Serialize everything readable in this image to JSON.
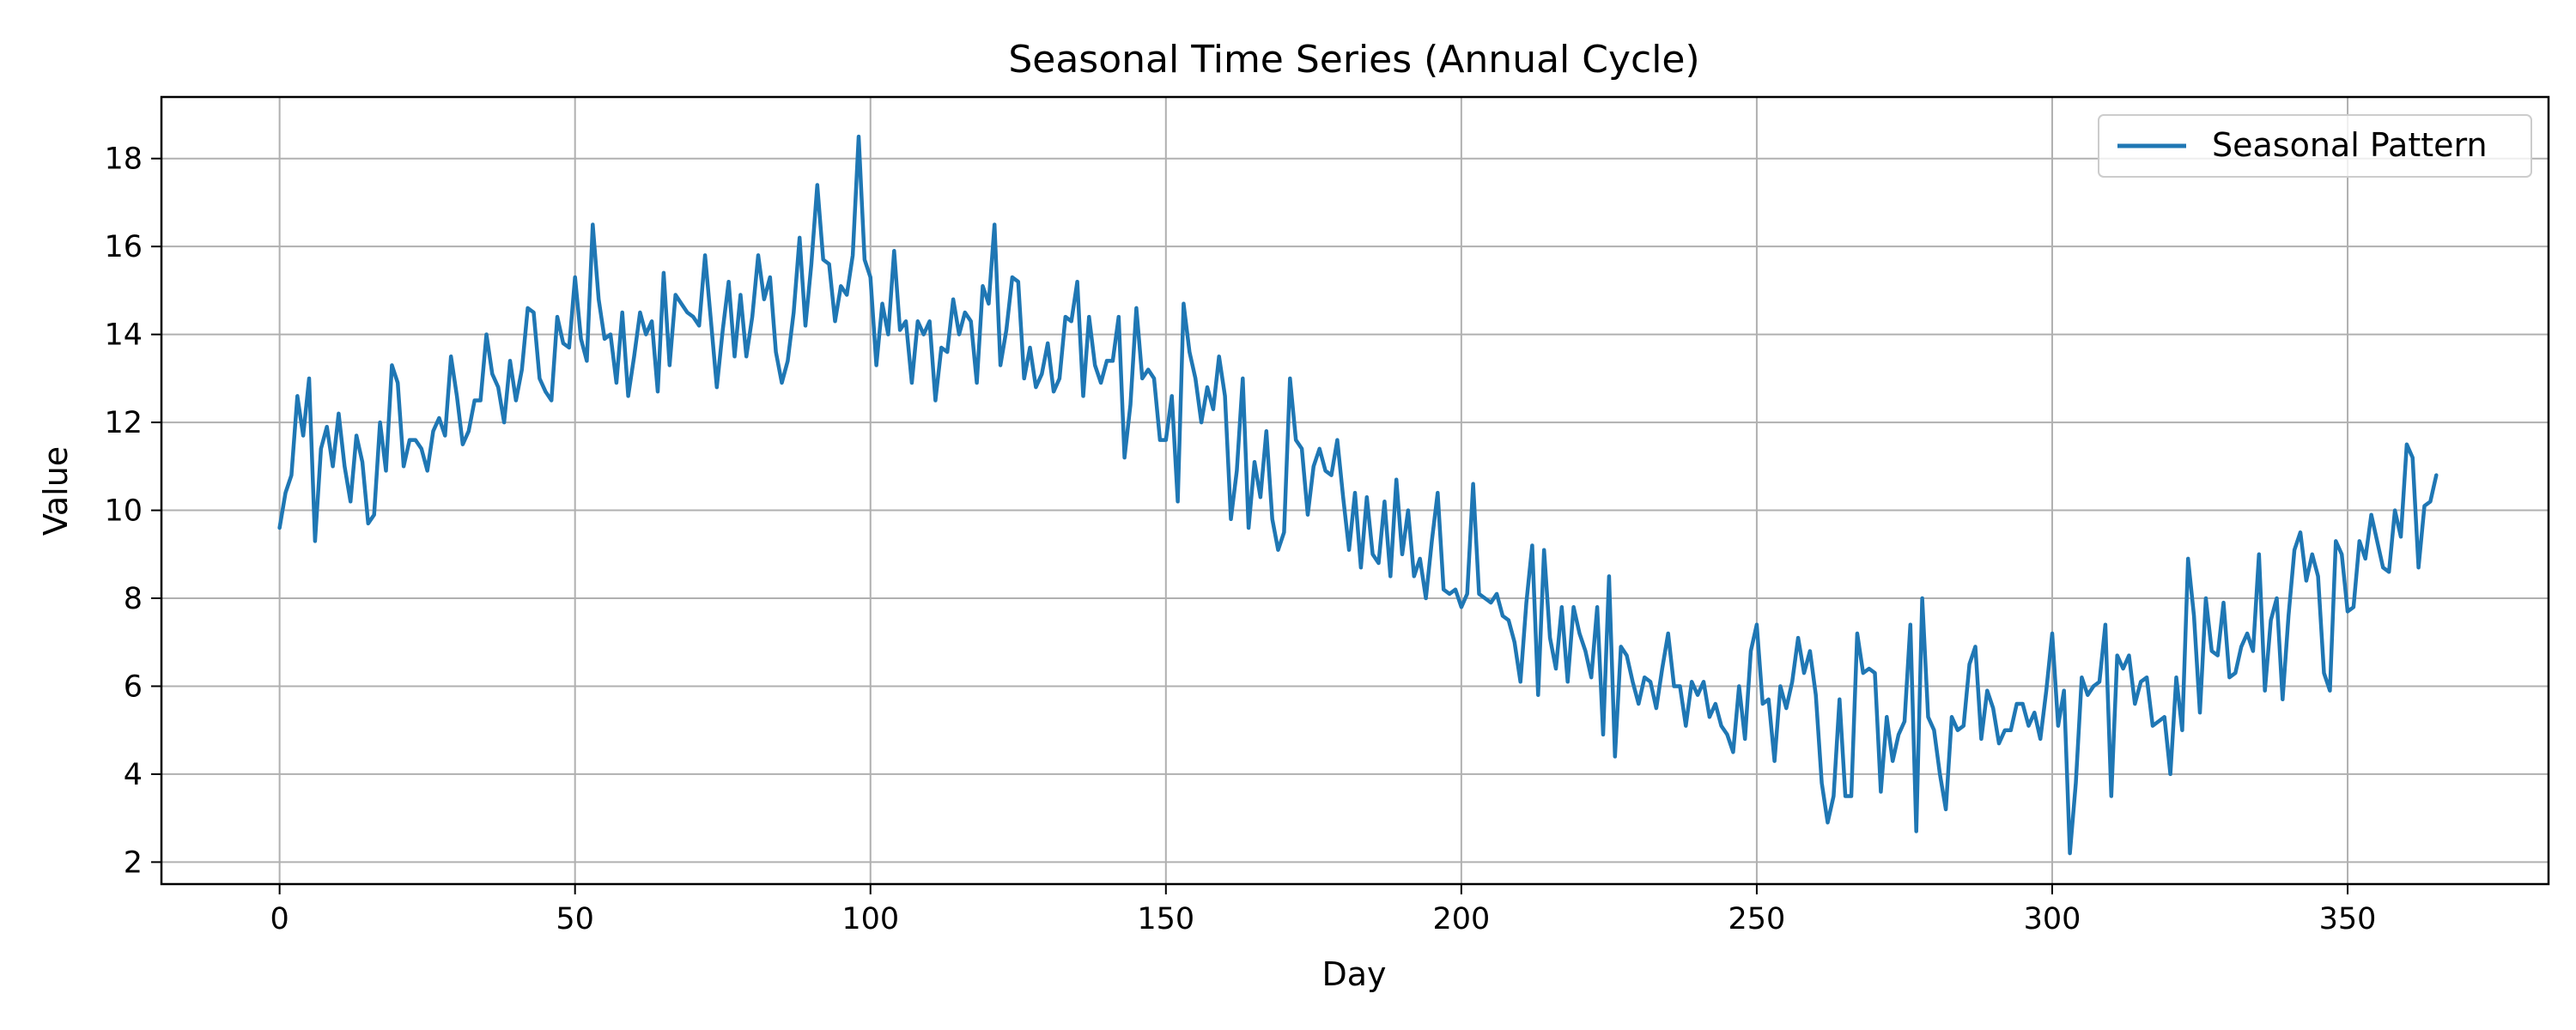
{
  "chart_data": {
    "type": "line",
    "title": "Seasonal Time Series (Annual Cycle)",
    "xlabel": "Day",
    "ylabel": "Value",
    "xlim": [
      -20,
      384
    ],
    "ylim": [
      1.5,
      19.4
    ],
    "xticks": [
      0,
      50,
      100,
      150,
      200,
      250,
      300,
      350
    ],
    "yticks": [
      2,
      4,
      6,
      8,
      10,
      12,
      14,
      16,
      18
    ],
    "grid": true,
    "legend_position": "top-right",
    "series": [
      {
        "name": "Seasonal Pattern",
        "color": "#1f77b4",
        "x_start": 0,
        "x_step": 1,
        "values": [
          9.6,
          10.4,
          10.8,
          12.6,
          11.7,
          13.0,
          9.3,
          11.4,
          11.9,
          11.0,
          12.2,
          11.0,
          10.2,
          11.7,
          11.1,
          9.7,
          9.9,
          12.0,
          10.9,
          13.3,
          12.9,
          11.0,
          11.6,
          11.6,
          11.4,
          10.9,
          11.8,
          12.1,
          11.7,
          13.5,
          12.6,
          11.5,
          11.8,
          12.5,
          12.5,
          14.0,
          13.1,
          12.8,
          12.0,
          13.4,
          12.5,
          13.2,
          14.6,
          14.5,
          13.0,
          12.7,
          12.5,
          14.4,
          13.8,
          13.7,
          15.3,
          13.9,
          13.4,
          16.5,
          14.8,
          13.9,
          14.0,
          12.9,
          14.5,
          12.6,
          13.5,
          14.5,
          14.0,
          14.3,
          12.7,
          15.4,
          13.3,
          14.9,
          14.7,
          14.5,
          14.4,
          14.2,
          15.8,
          14.3,
          12.8,
          14.1,
          15.2,
          13.5,
          14.9,
          13.5,
          14.4,
          15.8,
          14.8,
          15.3,
          13.6,
          12.9,
          13.4,
          14.5,
          16.2,
          14.2,
          15.6,
          17.4,
          15.7,
          15.6,
          14.3,
          15.1,
          14.9,
          15.8,
          18.5,
          15.7,
          15.3,
          13.3,
          14.7,
          14.0,
          15.9,
          14.1,
          14.3,
          12.9,
          14.3,
          14.0,
          14.3,
          12.5,
          13.7,
          13.6,
          14.8,
          14.0,
          14.5,
          14.3,
          12.9,
          15.1,
          14.7,
          16.5,
          13.3,
          14.1,
          15.3,
          15.2,
          13.0,
          13.7,
          12.8,
          13.1,
          13.8,
          12.7,
          13.0,
          14.4,
          14.3,
          15.2,
          12.6,
          14.4,
          13.3,
          12.9,
          13.4,
          13.4,
          14.4,
          11.2,
          12.4,
          14.6,
          13.0,
          13.2,
          13.0,
          11.6,
          11.6,
          12.6,
          10.2,
          14.7,
          13.6,
          13.0,
          12.0,
          12.8,
          12.3,
          13.5,
          12.6,
          9.8,
          10.9,
          13.0,
          9.6,
          11.1,
          10.3,
          11.8,
          9.8,
          9.1,
          9.5,
          13.0,
          11.6,
          11.4,
          9.9,
          11.0,
          11.4,
          10.9,
          10.8,
          11.6,
          10.3,
          9.1,
          10.4,
          8.7,
          10.3,
          9.0,
          8.8,
          10.2,
          8.5,
          10.7,
          9.0,
          10.0,
          8.5,
          8.9,
          8.0,
          9.3,
          10.4,
          8.2,
          8.1,
          8.2,
          7.8,
          8.1,
          10.6,
          8.1,
          8.0,
          7.9,
          8.1,
          7.6,
          7.5,
          7.0,
          6.1,
          7.9,
          9.2,
          5.8,
          9.1,
          7.1,
          6.4,
          7.8,
          6.1,
          7.8,
          7.2,
          6.8,
          6.2,
          7.8,
          4.9,
          8.5,
          4.4,
          6.9,
          6.7,
          6.1,
          5.6,
          6.2,
          6.1,
          5.5,
          6.4,
          7.2,
          6.0,
          6.0,
          5.1,
          6.1,
          5.8,
          6.1,
          5.3,
          5.6,
          5.1,
          4.9,
          4.5,
          6.0,
          4.8,
          6.8,
          7.4,
          5.6,
          5.7,
          4.3,
          6.0,
          5.5,
          6.1,
          7.1,
          6.3,
          6.8,
          5.8,
          3.8,
          2.9,
          3.5,
          5.7,
          3.5,
          3.5,
          7.2,
          6.3,
          6.4,
          6.3,
          3.6,
          5.3,
          4.3,
          4.9,
          5.2,
          7.4,
          2.7,
          8.0,
          5.3,
          5.0,
          4.0,
          3.2,
          5.3,
          5.0,
          5.1,
          6.5,
          6.9,
          4.8,
          5.9,
          5.5,
          4.7,
          5.0,
          5.0,
          5.6,
          5.6,
          5.1,
          5.4,
          4.8,
          5.9,
          7.2,
          5.1,
          5.9,
          2.2,
          3.8,
          6.2,
          5.8,
          6.0,
          6.1,
          7.4,
          3.5,
          6.7,
          6.4,
          6.7,
          5.6,
          6.1,
          6.2,
          5.1,
          5.2,
          5.3,
          4.0,
          6.2,
          5.0,
          8.9,
          7.6,
          5.4,
          8.0,
          6.8,
          6.7,
          7.9,
          6.2,
          6.3,
          6.9,
          7.2,
          6.8,
          9.0,
          5.9,
          7.5,
          8.0,
          5.7,
          7.6,
          9.1,
          9.5,
          8.4,
          9.0,
          8.5,
          6.3,
          5.9,
          9.3,
          9.0,
          7.7,
          7.8,
          9.3,
          8.9,
          9.9,
          9.3,
          8.7,
          8.6,
          10.0,
          9.4,
          11.5,
          11.2,
          8.7,
          10.1,
          10.2,
          10.8
        ]
      }
    ]
  }
}
